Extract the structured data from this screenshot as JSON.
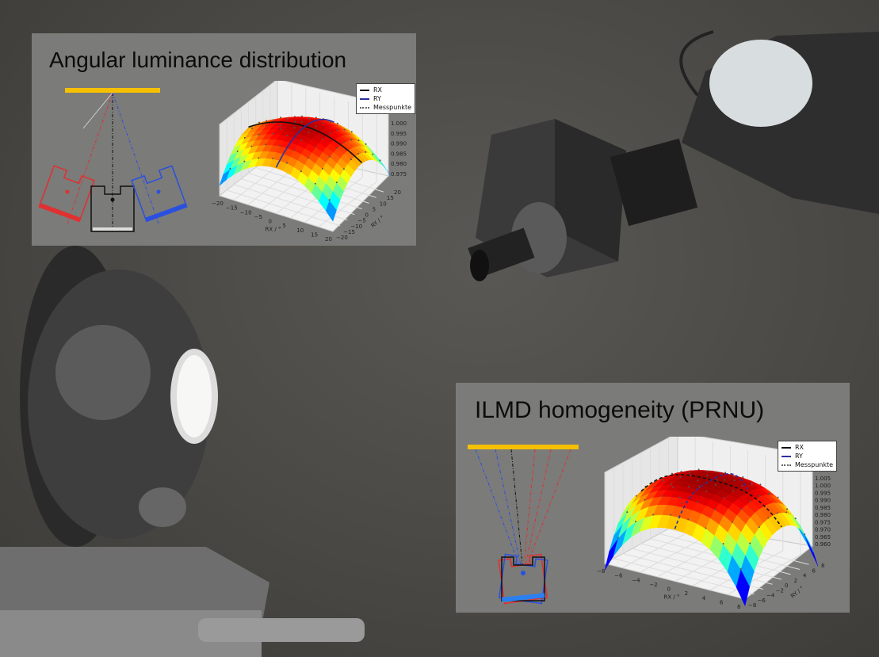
{
  "panels": {
    "angular": {
      "title": "Angular luminance distribution",
      "legend": [
        "RX",
        "RY",
        "Messpunkte"
      ]
    },
    "homogeneity": {
      "title": "ILMD homogeneity (PRNU)",
      "legend": [
        "RX",
        "RY",
        "Messpunkte"
      ]
    }
  },
  "colors": {
    "yellow_bar": "#f5c000",
    "red_path": "#e03030",
    "blue_path": "#2a50e0",
    "black_path": "#111111",
    "panel_bg": "#7b7b79"
  },
  "chart_data": [
    {
      "type": "surface",
      "xlabel": "RX / °",
      "ylabel": "RY / °",
      "x_ticks": [
        "−20",
        "−15",
        "−10",
        "−5",
        "0",
        "5",
        "10",
        "15",
        "20"
      ],
      "y_ticks": [
        "−20",
        "−15",
        "−10",
        "−5",
        "0",
        "5",
        "10",
        "15",
        "20"
      ],
      "z_ticks": [
        "0.975",
        "0.980",
        "0.985",
        "0.990",
        "0.995",
        "1.000"
      ],
      "xlim": [
        -20,
        20
      ],
      "ylim": [
        -20,
        20
      ],
      "zlim": [
        0.975,
        1.0
      ],
      "colormap": "jet",
      "shape": "dome peaking near 0.997 at center, ~0.975 at corners",
      "series": [
        {
          "name": "RX",
          "style": "solid",
          "color": "#111111"
        },
        {
          "name": "RY",
          "style": "solid",
          "color": "#2a30a0"
        },
        {
          "name": "Messpunkte",
          "style": "dots",
          "color": "#555555"
        }
      ],
      "legend_position": "top-right",
      "grid": true
    },
    {
      "type": "surface",
      "xlabel": "RX / °",
      "ylabel": "RY / °",
      "x_ticks": [
        "−8",
        "−6",
        "−4",
        "−2",
        "0",
        "2",
        "4",
        "6",
        "8"
      ],
      "y_ticks": [
        "−8",
        "−6",
        "−4",
        "−2",
        "0",
        "2",
        "4",
        "6",
        "8"
      ],
      "z_ticks": [
        "0.960",
        "0.965",
        "0.970",
        "0.975",
        "0.980",
        "0.985",
        "0.990",
        "0.995",
        "1.000",
        "1.005"
      ],
      "xlim": [
        -8,
        8
      ],
      "ylim": [
        -8,
        8
      ],
      "zlim": [
        0.96,
        1.005
      ],
      "colormap": "jet",
      "shape": "flat-topped dome ~1.003 at center, ~0.96 at corners",
      "series": [
        {
          "name": "RX",
          "style": "dashed",
          "color": "#111111"
        },
        {
          "name": "RY",
          "style": "dashed",
          "color": "#2a30a0"
        },
        {
          "name": "Messpunkte",
          "style": "dots",
          "color": "#555555"
        }
      ],
      "legend_position": "top-right",
      "grid": true
    }
  ]
}
